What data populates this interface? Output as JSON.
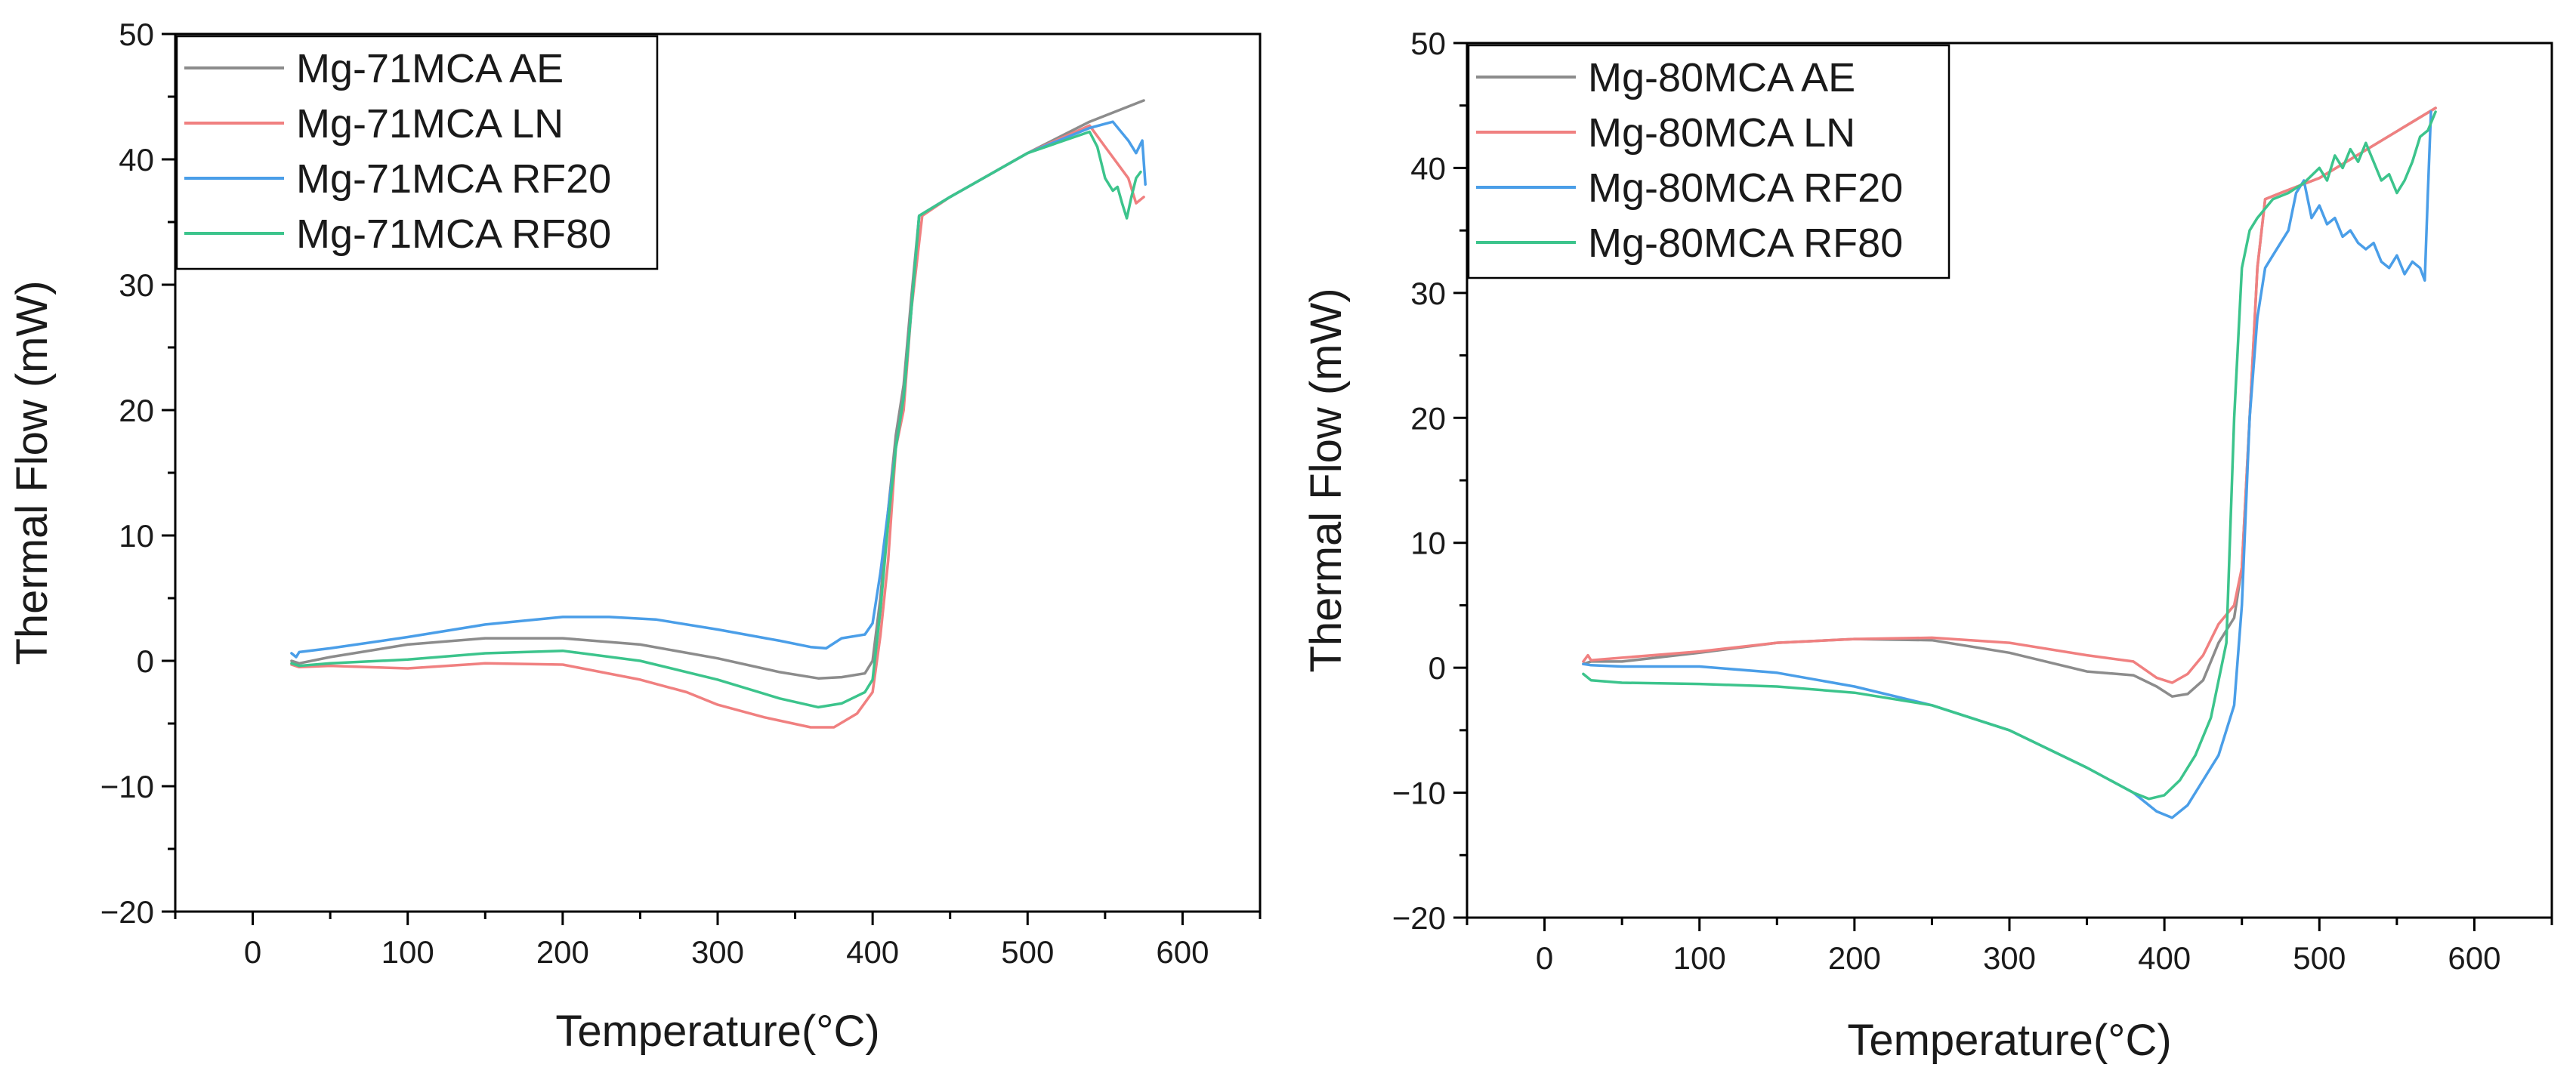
{
  "chart_data": [
    {
      "type": "line",
      "name": "left-panel",
      "xlabel": "Temperature(°C)",
      "ylabel": "Thermal Flow (mW)",
      "xlim": [
        -50,
        650
      ],
      "ylim": [
        -20,
        50
      ],
      "xticks": [
        0,
        100,
        200,
        300,
        400,
        500,
        600
      ],
      "yticks": [
        -20,
        -10,
        0,
        10,
        20,
        30,
        40,
        50
      ],
      "xtick_labels": [
        "0",
        "100",
        "200",
        "300",
        "400",
        "500",
        "600"
      ],
      "ytick_labels": [
        "−20",
        "−10",
        "0",
        "10",
        "20",
        "30",
        "40",
        "50"
      ],
      "legend_position": "top-left",
      "series": [
        {
          "name": "Mg-71MCA AE",
          "color": "#8c8c8c",
          "x": [
            25,
            30,
            50,
            100,
            150,
            200,
            250,
            300,
            340,
            365,
            380,
            395,
            400,
            405,
            410,
            415,
            420,
            425,
            430,
            450,
            500,
            540,
            575
          ],
          "y": [
            0,
            -0.2,
            0.3,
            1.3,
            1.8,
            1.8,
            1.3,
            0.2,
            -0.9,
            -1.4,
            -1.3,
            -1,
            0,
            5,
            12,
            18,
            22,
            29,
            35.5,
            37,
            40.5,
            43,
            44.7
          ]
        },
        {
          "name": "Mg-71MCA LN",
          "color": "#f08080",
          "x": [
            25,
            30,
            50,
            100,
            150,
            200,
            250,
            280,
            300,
            330,
            360,
            375,
            390,
            400,
            405,
            410,
            415,
            420,
            425,
            432,
            450,
            500,
            540,
            550,
            565,
            570,
            575
          ],
          "y": [
            -0.3,
            -0.5,
            -0.4,
            -0.6,
            -0.2,
            -0.3,
            -1.5,
            -2.5,
            -3.5,
            -4.5,
            -5.3,
            -5.3,
            -4.2,
            -2.5,
            2,
            8,
            17,
            20,
            28,
            35.5,
            37,
            40.5,
            42.7,
            41,
            38.5,
            36.5,
            37
          ]
        },
        {
          "name": "Mg-71MCA RF20",
          "color": "#4a9ee8",
          "x": [
            25,
            28,
            30,
            50,
            100,
            150,
            200,
            230,
            260,
            300,
            340,
            360,
            370,
            380,
            395,
            400,
            405,
            410,
            415,
            420,
            425,
            430,
            450,
            500,
            540,
            555,
            565,
            570,
            574,
            576
          ],
          "y": [
            0.6,
            0.3,
            0.7,
            1,
            1.9,
            2.9,
            3.5,
            3.5,
            3.3,
            2.5,
            1.6,
            1.1,
            1,
            1.8,
            2.1,
            3,
            7,
            12,
            17,
            21,
            28,
            35.5,
            37,
            40.5,
            42.5,
            43,
            41.5,
            40.5,
            41.5,
            38
          ]
        },
        {
          "name": "Mg-71MCA RF80",
          "color": "#3cc48c",
          "x": [
            25,
            30,
            50,
            100,
            150,
            200,
            250,
            300,
            340,
            365,
            380,
            395,
            400,
            405,
            410,
            415,
            420,
            425,
            430,
            450,
            500,
            540,
            545,
            550,
            555,
            558,
            561,
            564,
            567,
            570,
            573
          ],
          "y": [
            -0.2,
            -0.4,
            -0.2,
            0.1,
            0.6,
            0.8,
            0,
            -1.5,
            -3,
            -3.7,
            -3.4,
            -2.5,
            -1.5,
            4,
            11,
            17,
            21,
            28,
            35.5,
            37,
            40.5,
            42.2,
            41,
            38.5,
            37.5,
            37.8,
            36.5,
            35.3,
            37,
            38.5,
            39
          ]
        }
      ]
    },
    {
      "type": "line",
      "name": "right-panel",
      "xlabel": "Temperature(°C)",
      "ylabel": "Thermal Flow (mW)",
      "xlim": [
        -50,
        650
      ],
      "ylim": [
        -20,
        50
      ],
      "xticks": [
        0,
        100,
        200,
        300,
        400,
        500,
        600
      ],
      "yticks": [
        -20,
        -10,
        0,
        10,
        20,
        30,
        40,
        50
      ],
      "xtick_labels": [
        "0",
        "100",
        "200",
        "300",
        "400",
        "500",
        "600"
      ],
      "ytick_labels": [
        "−20",
        "−10",
        "0",
        "10",
        "20",
        "30",
        "40",
        "50"
      ],
      "legend_position": "top-left",
      "series": [
        {
          "name": "Mg-80MCA AE",
          "color": "#8c8c8c",
          "x": [
            25,
            30,
            50,
            100,
            150,
            200,
            250,
            300,
            350,
            380,
            395,
            405,
            415,
            425,
            435,
            445,
            450,
            455,
            460,
            465,
            475,
            500,
            575
          ],
          "y": [
            0.3,
            0.5,
            0.5,
            1.2,
            2,
            2.3,
            2.2,
            1.2,
            -0.3,
            -0.6,
            -1.5,
            -2.3,
            -2.1,
            -1,
            2,
            4,
            8,
            20,
            32,
            37.5,
            38,
            39.2,
            44.8
          ]
        },
        {
          "name": "Mg-80MCA LN",
          "color": "#f08080",
          "x": [
            25,
            28,
            30,
            50,
            100,
            150,
            200,
            250,
            300,
            350,
            380,
            395,
            405,
            415,
            425,
            435,
            445,
            450,
            455,
            460,
            465,
            475,
            500,
            575
          ],
          "y": [
            0.5,
            1,
            0.6,
            0.8,
            1.3,
            2,
            2.3,
            2.4,
            2,
            1,
            0.5,
            -0.8,
            -1.2,
            -0.5,
            1,
            3.5,
            5,
            8,
            20,
            32,
            37.5,
            38,
            39.2,
            44.8
          ]
        },
        {
          "name": "Mg-80MCA RF20",
          "color": "#4a9ee8",
          "x": [
            25,
            30,
            50,
            100,
            150,
            200,
            250,
            300,
            350,
            380,
            395,
            405,
            415,
            425,
            435,
            445,
            450,
            455,
            460,
            465,
            470,
            480,
            485,
            490,
            495,
            500,
            505,
            510,
            515,
            520,
            525,
            530,
            535,
            540,
            545,
            550,
            555,
            560,
            565,
            568,
            570,
            572
          ],
          "y": [
            0.3,
            0.2,
            0.1,
            0.1,
            -0.4,
            -1.5,
            -3,
            -5,
            -8,
            -10,
            -11.5,
            -12,
            -11,
            -9,
            -7,
            -3,
            5,
            20,
            28,
            32,
            33,
            35,
            38,
            39,
            36,
            37,
            35.5,
            36,
            34.5,
            35,
            34,
            33.5,
            34,
            32.5,
            32,
            33,
            31.5,
            32.5,
            32,
            31,
            38,
            44.5
          ]
        },
        {
          "name": "Mg-80MCA RF80",
          "color": "#3cc48c",
          "x": [
            25,
            30,
            50,
            100,
            150,
            200,
            250,
            300,
            350,
            380,
            390,
            400,
            410,
            420,
            430,
            440,
            445,
            450,
            455,
            460,
            470,
            480,
            490,
            500,
            505,
            510,
            515,
            520,
            525,
            530,
            535,
            540,
            545,
            550,
            555,
            560,
            565,
            570,
            575
          ],
          "y": [
            -0.5,
            -1,
            -1.2,
            -1.3,
            -1.5,
            -2,
            -3,
            -5,
            -8,
            -10,
            -10.5,
            -10.2,
            -9,
            -7,
            -4,
            2,
            20,
            32,
            35,
            36,
            37.5,
            38,
            38.8,
            40,
            39,
            41,
            40,
            41.5,
            40.5,
            42,
            40.5,
            39,
            39.5,
            38,
            39,
            40.5,
            42.5,
            43,
            44.5
          ]
        }
      ]
    }
  ]
}
